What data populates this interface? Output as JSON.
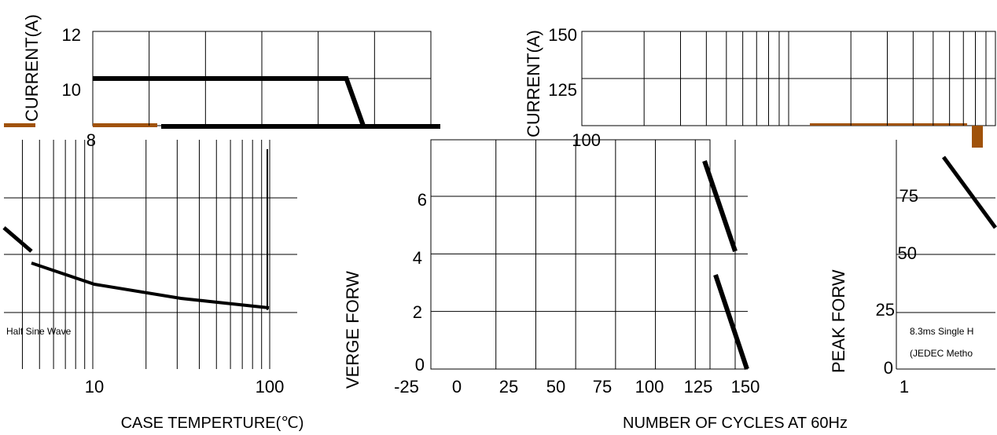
{
  "chart_data": [
    {
      "type": "line",
      "ylabel": "CURRENT(A)",
      "y_ticks": [
        "12",
        "10",
        "8"
      ],
      "ylim": [
        8,
        12
      ],
      "x_ticks": [],
      "grid": true,
      "series": [
        {
          "x": [
            0,
            105,
            112
          ],
          "y": [
            10,
            10,
            8
          ]
        }
      ]
    },
    {
      "type": "line",
      "ylabel": "VERGE FORW",
      "xlabel": "",
      "x_ticks": [
        "-25",
        "0",
        "25",
        "50",
        "75",
        "100",
        "125",
        "150"
      ],
      "xlim": [
        -25,
        150
      ],
      "y_ticks": [
        "6",
        "4",
        "2",
        "0"
      ],
      "ylim": [
        0,
        6
      ],
      "grid": true,
      "series": [
        {
          "x": [
            112,
            150
          ],
          "y": [
            6.6,
            0
          ]
        }
      ]
    },
    {
      "type": "line",
      "ylabel": "CURRENT(A)",
      "xscale": "log",
      "xlim": [
        1,
        100
      ],
      "x_ticks": [],
      "y_ticks": [
        "150",
        "125",
        "100"
      ],
      "ylim": [
        100,
        150
      ],
      "grid": true,
      "series": []
    },
    {
      "type": "line",
      "ylabel": "PEAK FORW",
      "xlabel": "NUMBER OF CYCLES AT 60Hz",
      "xscale": "log",
      "x_ticks": [
        "1"
      ],
      "y_ticks": [
        "75",
        "50",
        "25",
        "0"
      ],
      "ylim": [
        0,
        75
      ],
      "grid": true,
      "annotations": [
        "8.3ms Single H",
        "(JEDEC Metho"
      ],
      "series": [
        {
          "x": [
            1,
            2.5
          ],
          "y": [
            85,
            55
          ]
        }
      ]
    },
    {
      "type": "line",
      "xlabel": "CASE TEMPERTURE(℃)",
      "xscale": "log",
      "xlim": [
        1,
        100
      ],
      "x_ticks": [
        "10",
        "100"
      ],
      "grid": true,
      "annotations": [
        "Half Sine Wave"
      ],
      "series": [
        {
          "x": [
            1,
            100
          ],
          "y": [
            40,
            10
          ]
        }
      ]
    }
  ]
}
